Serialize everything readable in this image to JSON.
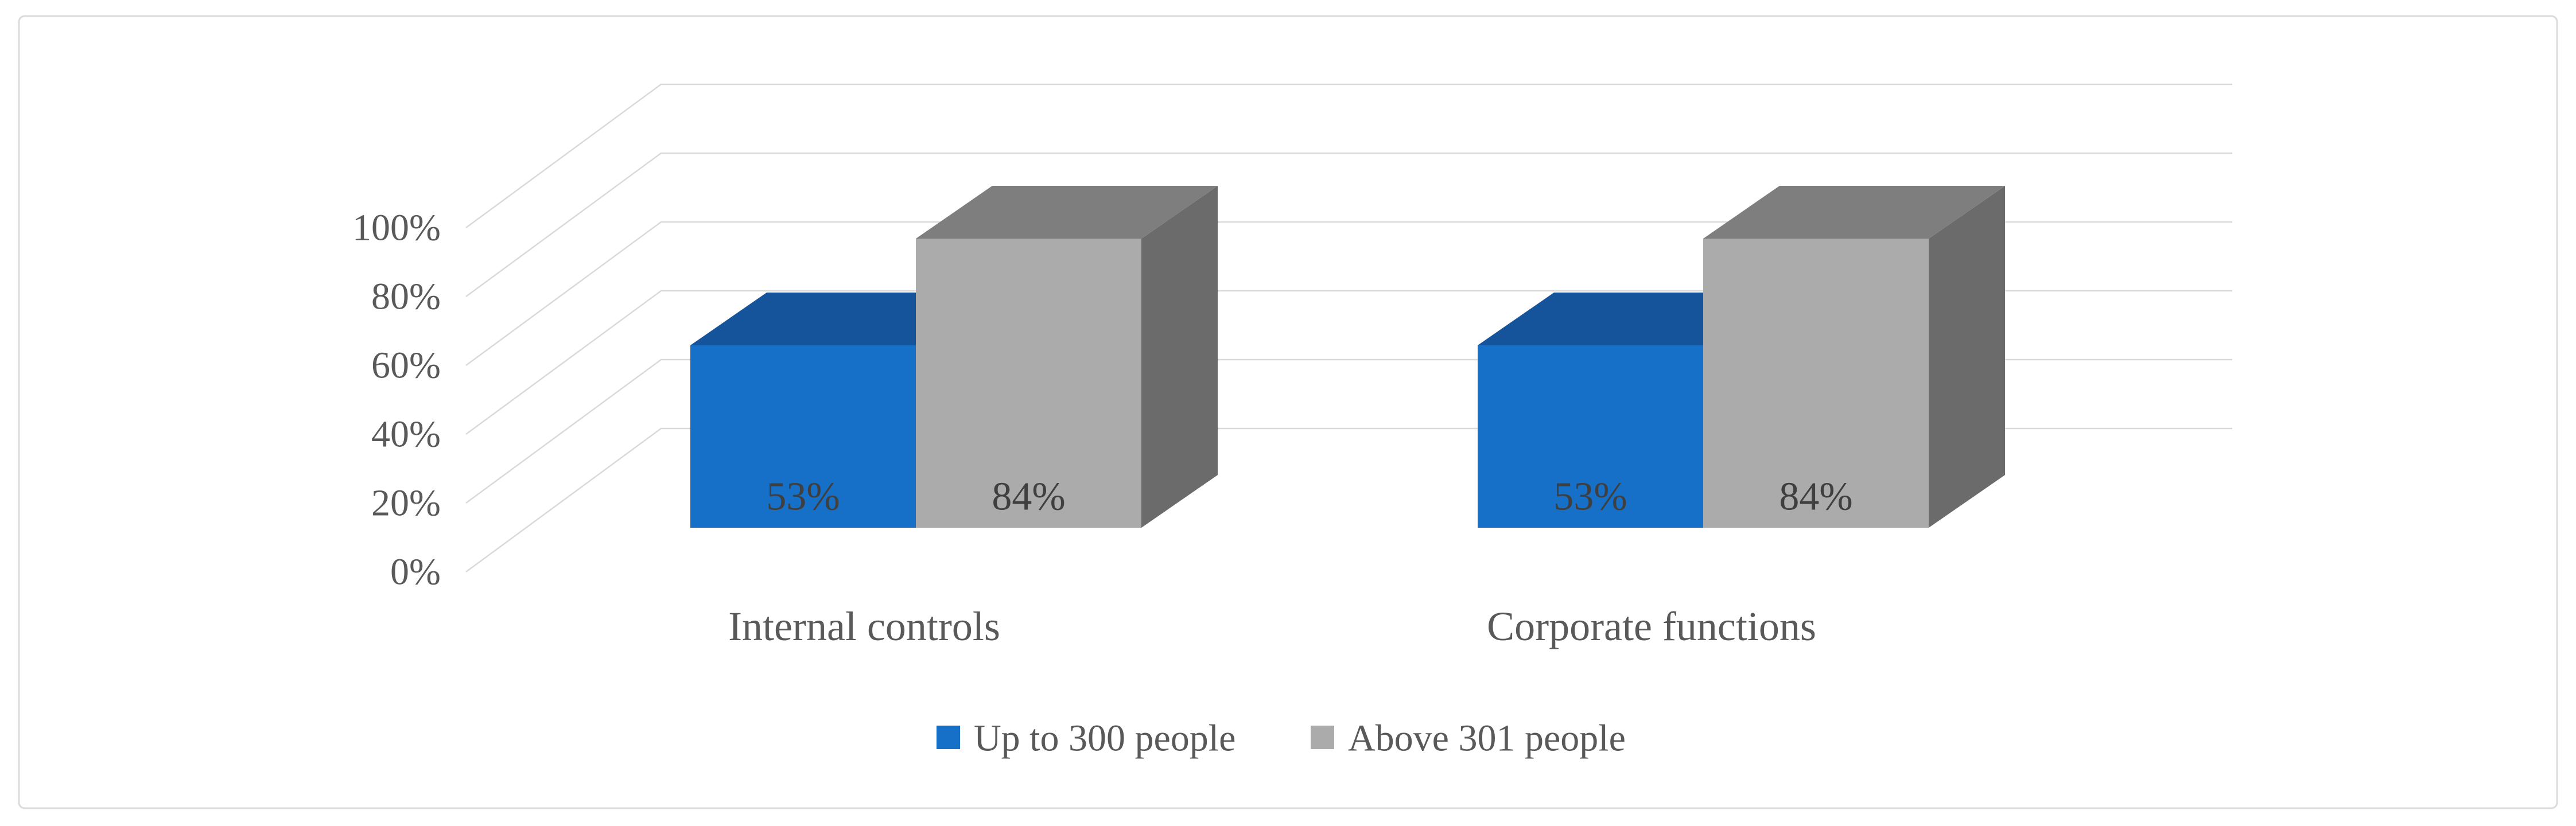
{
  "figure": {
    "background": "#FFFFFF",
    "border_color": "#DBDBDB"
  },
  "chart_data": {
    "type": "bar",
    "projection": "3d-clustered-column",
    "title": "",
    "xlabel": "",
    "ylabel": "",
    "categories": [
      "Internal controls",
      "Corporate functions"
    ],
    "series": [
      {
        "name": "Up to 300 people",
        "color": "#1770C8",
        "color_top": "#15549B",
        "values": [
          53,
          53
        ],
        "labels": [
          "53%",
          "53%"
        ]
      },
      {
        "name": "Above 301 people",
        "color": "#ABABAB",
        "color_top": "#7E7E7E",
        "color_side": "#6B6B6B",
        "values": [
          84,
          84
        ],
        "labels": [
          "84%",
          "84%"
        ]
      }
    ],
    "yticks": [
      "0%",
      "20%",
      "40%",
      "60%",
      "80%",
      "100%"
    ],
    "ytick_values": [
      0,
      20,
      40,
      60,
      80,
      100
    ],
    "ylim": [
      0,
      100
    ],
    "grid": true,
    "gridline_color": "#D9D9D9",
    "legend_position": "bottom",
    "text_color": "#595959",
    "datalabel_color": "#3F3F3F"
  }
}
